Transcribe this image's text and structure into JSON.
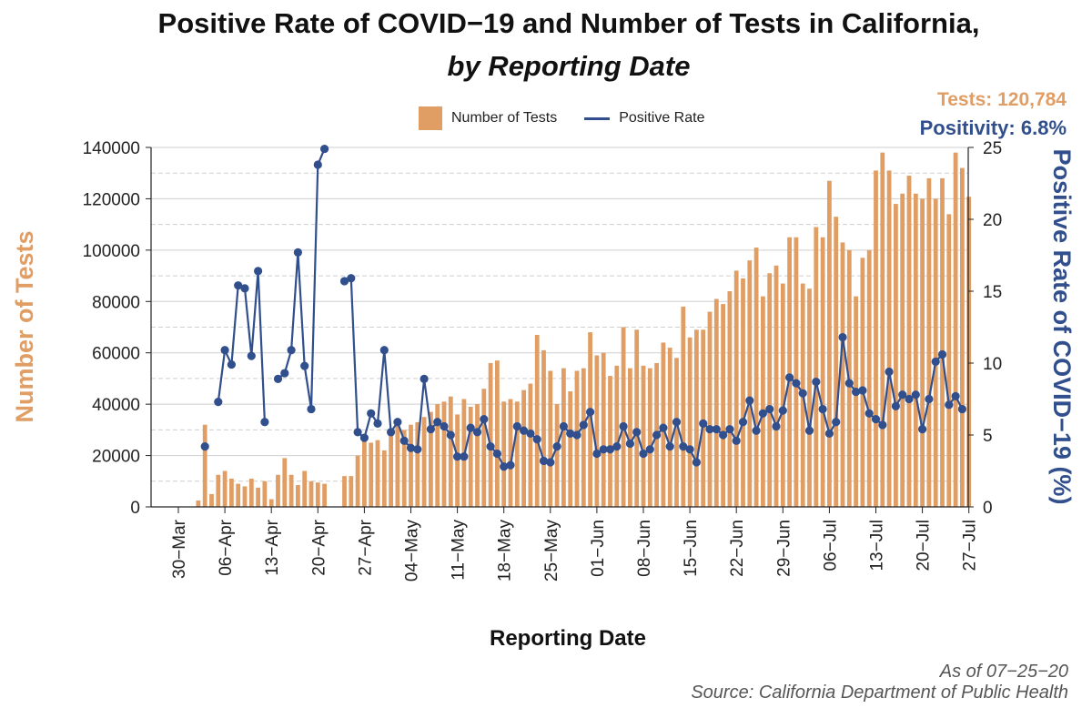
{
  "colors": {
    "bars": "#E09E65",
    "line": "#314F8C",
    "grid": "#cfcfcf",
    "axis": "#222222"
  },
  "header": {
    "title": "Positive Rate of COVID−19 and Number of Tests in California,",
    "subtitle": "by Reporting Date"
  },
  "summary": {
    "tests": "Tests: 120,784",
    "positivity": "Positivity: 6.8%"
  },
  "legend": {
    "bars_label": "Number of Tests",
    "line_label": "Positive Rate"
  },
  "footer": {
    "as_of": "As of 07−25−20",
    "source": "Source: California Department of Public Health"
  },
  "chart_data": {
    "type": "bar+line",
    "title": "Positive Rate of COVID−19 and Number of Tests in California,",
    "subtitle": "by Reporting Date",
    "xlabel": "Reporting Date",
    "ylabel_left": "Number of Tests",
    "ylabel_right": "Positive Rate of COVID−19 (%)",
    "ylim_left": [
      0,
      140000
    ],
    "ylim_right": [
      0,
      25
    ],
    "left_ticks": [
      0,
      20000,
      40000,
      60000,
      80000,
      100000,
      120000,
      140000
    ],
    "right_ticks": [
      0,
      5,
      10,
      15,
      20,
      25
    ],
    "x_ticks": [
      "30−Mar",
      "06−Apr",
      "13−Apr",
      "20−Apr",
      "27−Apr",
      "04−May",
      "11−May",
      "18−May",
      "25−May",
      "01−Jun",
      "08−Jun",
      "15−Jun",
      "22−Jun",
      "29−Jun",
      "06−Jul",
      "13−Jul",
      "20−Jul",
      "27−Jul"
    ],
    "x_start_date": "2020-03-30",
    "grid": true,
    "legend_position": "top",
    "series": [
      {
        "name": "Number of Tests",
        "kind": "bar",
        "start_date": "2020-04-02",
        "values": [
          2500,
          32000,
          5000,
          12500,
          14000,
          11000,
          9000,
          8000,
          11000,
          7500,
          10000,
          3000,
          12500,
          19000,
          12500,
          8500,
          14000,
          10000,
          9500,
          9000,
          null,
          null,
          12000,
          12000,
          20000,
          27000,
          25000,
          26000,
          22000,
          30000,
          32000,
          30000,
          32000,
          33000,
          35000,
          37000,
          40000,
          41000,
          43000,
          36000,
          42000,
          39000,
          40000,
          46000,
          56000,
          57000,
          41000,
          42000,
          41000,
          45500,
          48000,
          67000,
          61000,
          53000,
          40000,
          54000,
          45000,
          53000,
          54000,
          68000,
          59000,
          60000,
          51000,
          55000,
          70000,
          54000,
          69000,
          55000,
          54000,
          56000,
          64000,
          62000,
          58000,
          78000,
          66000,
          69000,
          69000,
          76000,
          81000,
          79000,
          84000,
          92000,
          89000,
          96000,
          101000,
          82000,
          91000,
          94000,
          87000,
          105000,
          105000,
          87000,
          85000,
          109000,
          105000,
          127000,
          113000,
          103000,
          100000,
          82000,
          97000,
          100000,
          131000,
          138000,
          131000,
          118000,
          122000,
          129000,
          122000,
          120000,
          128000,
          120000,
          128000,
          114000,
          138000,
          132000,
          120784
        ]
      },
      {
        "name": "Positive Rate",
        "kind": "line",
        "unit": "%",
        "start_date": "2020-04-03",
        "values": [
          4.2,
          null,
          7.3,
          10.9,
          9.9,
          15.4,
          15.2,
          10.5,
          16.4,
          5.9,
          null,
          8.9,
          9.3,
          10.9,
          17.7,
          9.8,
          6.8,
          23.8,
          24.9,
          null,
          null,
          15.7,
          15.9,
          5.2,
          4.8,
          6.5,
          5.8,
          10.9,
          5.2,
          5.9,
          4.6,
          4.1,
          4.0,
          8.9,
          5.4,
          5.9,
          5.6,
          5.0,
          3.5,
          3.5,
          5.5,
          5.2,
          6.1,
          4.2,
          3.7,
          2.8,
          2.9,
          5.6,
          5.3,
          5.1,
          4.7,
          3.2,
          3.1,
          4.2,
          5.6,
          5.1,
          5.0,
          5.7,
          6.6,
          3.7,
          4.0,
          4.0,
          4.2,
          5.6,
          4.4,
          5.2,
          3.7,
          4.0,
          5.0,
          5.5,
          4.2,
          5.9,
          4.2,
          4.0,
          3.1,
          5.8,
          5.4,
          5.4,
          5.0,
          5.4,
          4.6,
          5.9,
          7.4,
          5.3,
          6.5,
          6.8,
          5.6,
          6.7,
          9.0,
          8.6,
          7.9,
          5.3,
          8.7,
          6.8,
          5.1,
          5.9,
          11.8,
          8.6,
          8.0,
          8.1,
          6.5,
          6.1,
          5.7,
          9.4,
          7.0,
          7.8,
          7.5,
          7.8,
          5.4,
          7.5,
          10.1,
          10.6,
          7.1,
          7.7,
          6.8
        ]
      }
    ]
  }
}
